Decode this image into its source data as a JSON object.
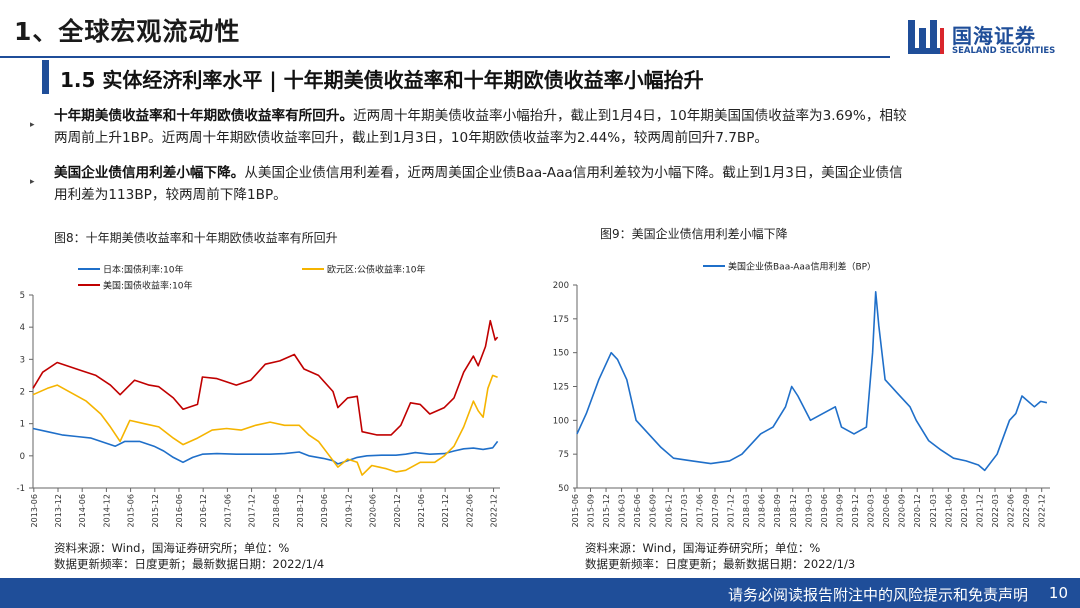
{
  "header": {
    "section_title": "1、全球宏观流动性",
    "logo_cn": "国海证券",
    "logo_en": "SEALAND SECURITIES"
  },
  "subtitle": "1.5 实体经济利率水平 | 十年期美债收益率和十年期欧债收益率小幅抬升",
  "bullets": [
    {
      "bold": "十年期美债收益率和十年期欧债收益率有所回升。",
      "line1": "近两周十年期美债收益率小幅抬升，截止到1月4日，10年期美国国债收益率为3.69%，相较",
      "line2": "两周前上升1BP。近两周十年期欧债收益率回升，截止到1月3日，10年期欧债收益率为2.44%，较两周前回升7.7BP。"
    },
    {
      "bold": "美国企业债信用利差小幅下降。",
      "line1": "从美国企业债信用利差看，近两周美国企业债Baa-Aaa信用利差较为小幅下降。截止到1月3日，美国企业债信",
      "line2": "用利差为113BP，较两周前下降1BP。"
    }
  ],
  "figures": {
    "left_title": "图8：十年期美债收益率和十年期欧债收益率有所回升",
    "right_title": "图9：美国企业债信用利差小幅下降",
    "left_source": "资料来源：Wind，国海证券研究所；单位：%",
    "left_update": "数据更新频率：日度更新；最新数据日期：2022/1/4",
    "right_source": "资料来源：Wind，国海证券研究所；单位：%",
    "right_update": "数据更新频率：日度更新；最新数据日期：2022/1/3"
  },
  "footer": {
    "disclaimer": "请务必阅读报告附注中的风险提示和免责声明",
    "page": "10"
  },
  "chart_data": [
    {
      "type": "line",
      "title": "图8：十年期美债收益率和十年期欧债收益率有所回升",
      "ylim": [
        -1,
        5
      ],
      "yticks": [
        -1,
        0,
        1,
        2,
        3,
        4,
        5
      ],
      "x_ticks": [
        "2013-06",
        "2013-12",
        "2014-06",
        "2014-12",
        "2015-06",
        "2015-12",
        "2016-06",
        "2016-12",
        "2017-06",
        "2017-12",
        "2018-06",
        "2018-12",
        "2019-06",
        "2019-12",
        "2020-06",
        "2020-12",
        "2021-06",
        "2021-12",
        "2022-06",
        "2022-12"
      ],
      "x_start": 2013.4,
      "x_end": 2023.05,
      "series": [
        {
          "name": "日本:国债利率:10年",
          "color": "#1f6fc9",
          "x": [
            2013.4,
            2013.7,
            2014.0,
            2014.3,
            2014.6,
            2014.9,
            2015.1,
            2015.3,
            2015.6,
            2015.9,
            2016.1,
            2016.3,
            2016.5,
            2016.7,
            2016.9,
            2017.2,
            2017.6,
            2017.9,
            2018.3,
            2018.6,
            2018.9,
            2019.1,
            2019.4,
            2019.6,
            2019.7,
            2019.9,
            2020.1,
            2020.3,
            2020.6,
            2020.9,
            2021.1,
            2021.3,
            2021.6,
            2021.9,
            2022.1,
            2022.3,
            2022.5,
            2022.7,
            2022.9,
            2023.0
          ],
          "y": [
            0.85,
            0.75,
            0.65,
            0.6,
            0.55,
            0.4,
            0.3,
            0.45,
            0.45,
            0.3,
            0.15,
            -0.05,
            -0.2,
            -0.05,
            0.05,
            0.07,
            0.05,
            0.05,
            0.05,
            0.07,
            0.12,
            0.0,
            -0.08,
            -0.15,
            -0.25,
            -0.15,
            -0.05,
            0.0,
            0.02,
            0.02,
            0.05,
            0.1,
            0.05,
            0.07,
            0.15,
            0.22,
            0.24,
            0.2,
            0.25,
            0.45
          ]
        },
        {
          "name": "欧元区:公债收益率:10年",
          "color": "#f5b400",
          "x": [
            2013.4,
            2013.7,
            2013.9,
            2014.2,
            2014.5,
            2014.8,
            2015.0,
            2015.2,
            2015.4,
            2015.7,
            2016.0,
            2016.3,
            2016.5,
            2016.8,
            2017.1,
            2017.4,
            2017.7,
            2018.0,
            2018.3,
            2018.6,
            2018.9,
            2019.1,
            2019.3,
            2019.5,
            2019.7,
            2019.9,
            2020.1,
            2020.2,
            2020.4,
            2020.7,
            2020.9,
            2021.1,
            2021.4,
            2021.7,
            2021.9,
            2022.1,
            2022.3,
            2022.5,
            2022.6,
            2022.7,
            2022.8,
            2022.9,
            2023.0
          ],
          "y": [
            1.9,
            2.1,
            2.2,
            1.95,
            1.7,
            1.3,
            0.9,
            0.45,
            1.1,
            1.0,
            0.9,
            0.55,
            0.35,
            0.55,
            0.8,
            0.85,
            0.8,
            0.95,
            1.05,
            0.95,
            0.95,
            0.65,
            0.45,
            0.05,
            -0.35,
            -0.1,
            -0.2,
            -0.6,
            -0.3,
            -0.4,
            -0.5,
            -0.45,
            -0.2,
            -0.2,
            0.0,
            0.3,
            0.9,
            1.7,
            1.4,
            1.2,
            2.1,
            2.5,
            2.44
          ]
        },
        {
          "name": "美国:国债收益率:10年",
          "color": "#c00000",
          "x": [
            2013.4,
            2013.6,
            2013.9,
            2014.1,
            2014.4,
            2014.7,
            2015.0,
            2015.2,
            2015.5,
            2015.8,
            2016.0,
            2016.3,
            2016.5,
            2016.8,
            2016.9,
            2017.2,
            2017.6,
            2017.9,
            2018.2,
            2018.5,
            2018.8,
            2019.0,
            2019.3,
            2019.6,
            2019.7,
            2019.9,
            2020.1,
            2020.2,
            2020.5,
            2020.8,
            2021.0,
            2021.2,
            2021.4,
            2021.6,
            2021.9,
            2022.1,
            2022.3,
            2022.5,
            2022.6,
            2022.75,
            2022.85,
            2022.95,
            2023.0
          ],
          "y": [
            2.1,
            2.6,
            2.9,
            2.8,
            2.65,
            2.5,
            2.2,
            1.9,
            2.35,
            2.2,
            2.15,
            1.8,
            1.45,
            1.6,
            2.45,
            2.4,
            2.2,
            2.35,
            2.85,
            2.95,
            3.15,
            2.7,
            2.5,
            2.0,
            1.5,
            1.8,
            1.85,
            0.75,
            0.65,
            0.65,
            0.95,
            1.65,
            1.6,
            1.3,
            1.5,
            1.8,
            2.6,
            3.1,
            2.8,
            3.4,
            4.2,
            3.6,
            3.69
          ]
        }
      ]
    },
    {
      "type": "line",
      "title": "图9：美国企业债信用利差小幅下降",
      "ylim": [
        50,
        200
      ],
      "yticks": [
        50,
        75,
        100,
        125,
        150,
        175,
        200
      ],
      "x_ticks": [
        "2015-06",
        "2015-09",
        "2015-12",
        "2016-03",
        "2016-06",
        "2016-09",
        "2016-12",
        "2017-03",
        "2017-06",
        "2017-09",
        "2017-12",
        "2018-03",
        "2018-06",
        "2018-09",
        "2018-12",
        "2019-03",
        "2019-06",
        "2019-09",
        "2019-12",
        "2020-03",
        "2020-06",
        "2020-09",
        "2020-12",
        "2021-03",
        "2021-06",
        "2021-09",
        "2021-12",
        "2022-03",
        "2022-06",
        "2022-09",
        "2022-12"
      ],
      "x_start": 2015.45,
      "x_end": 2023.05,
      "series": [
        {
          "name": "美国企业债Baa-Aaa信用利差（BP）",
          "color": "#1f6fc9",
          "x": [
            2015.45,
            2015.6,
            2015.8,
            2016.0,
            2016.1,
            2016.25,
            2016.4,
            2016.6,
            2016.8,
            2017.0,
            2017.3,
            2017.6,
            2017.9,
            2018.1,
            2018.4,
            2018.6,
            2018.8,
            2018.9,
            2019.0,
            2019.2,
            2019.4,
            2019.6,
            2019.7,
            2019.9,
            2020.1,
            2020.2,
            2020.25,
            2020.3,
            2020.4,
            2020.6,
            2020.8,
            2020.9,
            2021.1,
            2021.3,
            2021.5,
            2021.7,
            2021.9,
            2022.0,
            2022.2,
            2022.4,
            2022.5,
            2022.6,
            2022.8,
            2022.9,
            2023.0
          ],
          "y": [
            90,
            105,
            130,
            150,
            145,
            130,
            100,
            90,
            80,
            72,
            70,
            68,
            70,
            75,
            90,
            95,
            110,
            125,
            118,
            100,
            105,
            110,
            95,
            90,
            95,
            150,
            195,
            170,
            130,
            120,
            110,
            100,
            85,
            78,
            72,
            70,
            67,
            63,
            75,
            100,
            105,
            118,
            110,
            114,
            113
          ]
        }
      ]
    }
  ]
}
